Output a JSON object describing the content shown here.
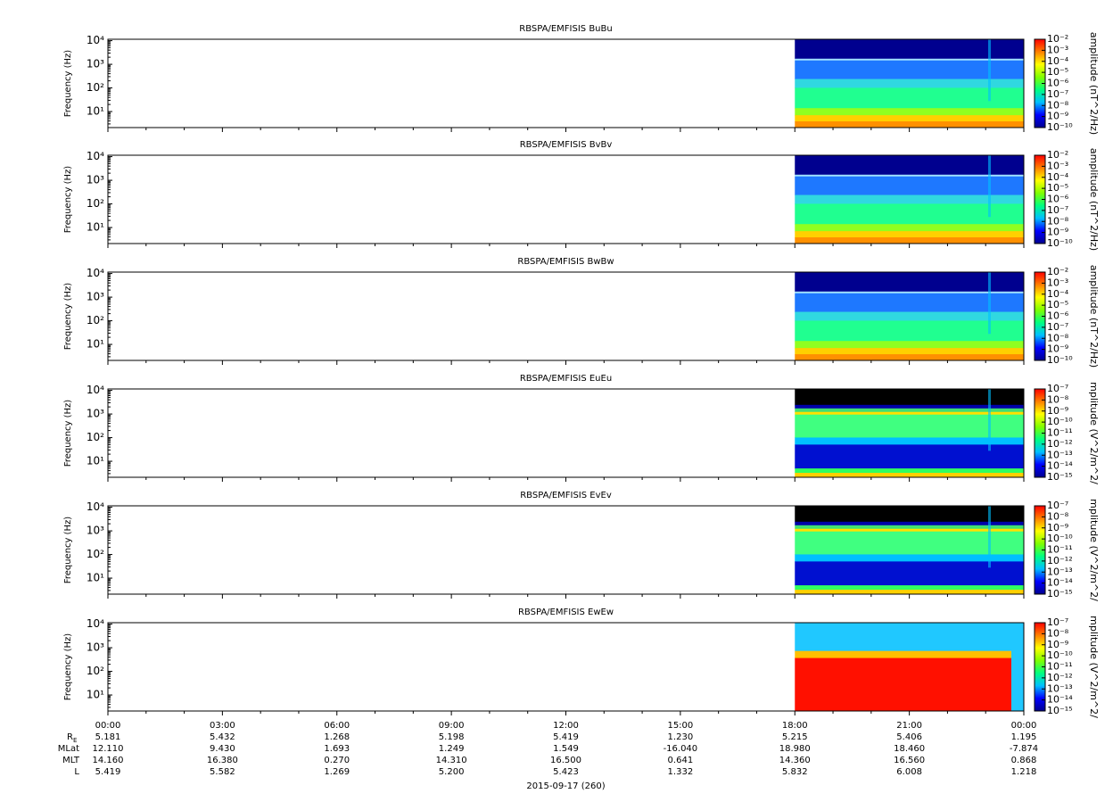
{
  "chart_data": [
    {
      "type": "spectrogram",
      "title": "RBSPA/EMFISIS  BuBu",
      "ylabel": "Frequency (Hz)",
      "ylog": true,
      "ylim": [
        2.1,
        11500
      ],
      "yticks": [
        {
          "value": 10,
          "label": "10¹"
        },
        {
          "value": 100,
          "label": "10²"
        },
        {
          "value": 1000,
          "label": "10³"
        },
        {
          "value": 10000,
          "label": "10⁴"
        }
      ],
      "colorbar": {
        "label": "amplitude (nT^2/Hz)",
        "log": true,
        "lim": [
          1e-10,
          0.01
        ],
        "ticks": [
          {
            "value": 0.01,
            "label": "10⁻²"
          },
          {
            "value": 0.001,
            "label": "10⁻³"
          },
          {
            "value": 0.0001,
            "label": "10⁻⁴"
          },
          {
            "value": 1e-05,
            "label": "10⁻⁵"
          },
          {
            "value": 1e-06,
            "label": "10⁻⁶"
          },
          {
            "value": 1e-07,
            "label": "10⁻⁷"
          },
          {
            "value": 1e-08,
            "label": "10⁻⁸"
          },
          {
            "value": 1e-09,
            "label": "10⁻⁹"
          },
          {
            "value": 1e-10,
            "label": "10⁻¹⁰"
          }
        ]
      }
    },
    {
      "type": "spectrogram",
      "title": "RBSPA/EMFISIS  BvBv",
      "ylabel": "Frequency (Hz)",
      "ylog": true,
      "ylim": [
        2.1,
        11500
      ],
      "yticks": [
        {
          "value": 10,
          "label": "10¹"
        },
        {
          "value": 100,
          "label": "10²"
        },
        {
          "value": 1000,
          "label": "10³"
        },
        {
          "value": 10000,
          "label": "10⁴"
        }
      ],
      "colorbar": {
        "label": "amplitude (nT^2/Hz)",
        "log": true,
        "lim": [
          1e-10,
          0.01
        ],
        "ticks": [
          {
            "value": 0.01,
            "label": "10⁻²"
          },
          {
            "value": 0.001,
            "label": "10⁻³"
          },
          {
            "value": 0.0001,
            "label": "10⁻⁴"
          },
          {
            "value": 1e-05,
            "label": "10⁻⁵"
          },
          {
            "value": 1e-06,
            "label": "10⁻⁶"
          },
          {
            "value": 1e-07,
            "label": "10⁻⁷"
          },
          {
            "value": 1e-08,
            "label": "10⁻⁸"
          },
          {
            "value": 1e-09,
            "label": "10⁻⁹"
          },
          {
            "value": 1e-10,
            "label": "10⁻¹⁰"
          }
        ]
      }
    },
    {
      "type": "spectrogram",
      "title": "RBSPA/EMFISIS  BwBw",
      "ylabel": "Frequency (Hz)",
      "ylog": true,
      "ylim": [
        2.1,
        11500
      ],
      "yticks": [
        {
          "value": 10,
          "label": "10¹"
        },
        {
          "value": 100,
          "label": "10²"
        },
        {
          "value": 1000,
          "label": "10³"
        },
        {
          "value": 10000,
          "label": "10⁴"
        }
      ],
      "colorbar": {
        "label": "amplitude (nT^2/Hz)",
        "log": true,
        "lim": [
          1e-10,
          0.01
        ],
        "ticks": [
          {
            "value": 0.01,
            "label": "10⁻²"
          },
          {
            "value": 0.001,
            "label": "10⁻³"
          },
          {
            "value": 0.0001,
            "label": "10⁻⁴"
          },
          {
            "value": 1e-05,
            "label": "10⁻⁵"
          },
          {
            "value": 1e-06,
            "label": "10⁻⁶"
          },
          {
            "value": 1e-07,
            "label": "10⁻⁷"
          },
          {
            "value": 1e-08,
            "label": "10⁻⁸"
          },
          {
            "value": 1e-09,
            "label": "10⁻⁹"
          },
          {
            "value": 1e-10,
            "label": "10⁻¹⁰"
          }
        ]
      }
    },
    {
      "type": "spectrogram",
      "title": "RBSPA/EMFISIS  EuEu",
      "ylabel": "Frequency (Hz)",
      "ylog": true,
      "ylim": [
        2.1,
        11500
      ],
      "yticks": [
        {
          "value": 10,
          "label": "10¹"
        },
        {
          "value": 100,
          "label": "10²"
        },
        {
          "value": 1000,
          "label": "10³"
        },
        {
          "value": 10000,
          "label": "10⁴"
        }
      ],
      "colorbar": {
        "label": "mplitude (V^2/m^2/",
        "log": true,
        "lim": [
          1e-15,
          1e-07
        ],
        "ticks": [
          {
            "value": 1e-07,
            "label": "10⁻⁷"
          },
          {
            "value": 1e-08,
            "label": "10⁻⁸"
          },
          {
            "value": 1e-09,
            "label": "10⁻⁹"
          },
          {
            "value": 1e-10,
            "label": "10⁻¹⁰"
          },
          {
            "value": 1e-11,
            "label": "10⁻¹¹"
          },
          {
            "value": 1e-12,
            "label": "10⁻¹²"
          },
          {
            "value": 1e-13,
            "label": "10⁻¹³"
          },
          {
            "value": 1e-14,
            "label": "10⁻¹⁴"
          },
          {
            "value": 1e-15,
            "label": "10⁻¹⁵"
          }
        ]
      }
    },
    {
      "type": "spectrogram",
      "title": "RBSPA/EMFISIS  EvEv",
      "ylabel": "Frequency (Hz)",
      "ylog": true,
      "ylim": [
        2.1,
        11500
      ],
      "yticks": [
        {
          "value": 10,
          "label": "10¹"
        },
        {
          "value": 100,
          "label": "10²"
        },
        {
          "value": 1000,
          "label": "10³"
        },
        {
          "value": 10000,
          "label": "10⁴"
        }
      ],
      "colorbar": {
        "label": "mplitude (V^2/m^2/",
        "log": true,
        "lim": [
          1e-15,
          1e-07
        ],
        "ticks": [
          {
            "value": 1e-07,
            "label": "10⁻⁷"
          },
          {
            "value": 1e-08,
            "label": "10⁻⁸"
          },
          {
            "value": 1e-09,
            "label": "10⁻⁹"
          },
          {
            "value": 1e-10,
            "label": "10⁻¹⁰"
          },
          {
            "value": 1e-11,
            "label": "10⁻¹¹"
          },
          {
            "value": 1e-12,
            "label": "10⁻¹²"
          },
          {
            "value": 1e-13,
            "label": "10⁻¹³"
          },
          {
            "value": 1e-14,
            "label": "10⁻¹⁴"
          },
          {
            "value": 1e-15,
            "label": "10⁻¹⁵"
          }
        ]
      }
    },
    {
      "type": "spectrogram",
      "title": "RBSPA/EMFISIS  EwEw",
      "ylabel": "Frequency (Hz)",
      "ylog": true,
      "ylim": [
        2.1,
        11500
      ],
      "yticks": [
        {
          "value": 10,
          "label": "10¹"
        },
        {
          "value": 100,
          "label": "10²"
        },
        {
          "value": 1000,
          "label": "10³"
        },
        {
          "value": 10000,
          "label": "10⁴"
        }
      ],
      "colorbar": {
        "label": "mplitude (V^2/m^2/",
        "log": true,
        "lim": [
          1e-15,
          1e-07
        ],
        "ticks": [
          {
            "value": 1e-07,
            "label": "10⁻⁷"
          },
          {
            "value": 1e-08,
            "label": "10⁻⁸"
          },
          {
            "value": 1e-09,
            "label": "10⁻⁹"
          },
          {
            "value": 1e-10,
            "label": "10⁻¹⁰"
          },
          {
            "value": 1e-11,
            "label": "10⁻¹¹"
          },
          {
            "value": 1e-12,
            "label": "10⁻¹²"
          },
          {
            "value": 1e-13,
            "label": "10⁻¹³"
          },
          {
            "value": 1e-14,
            "label": "10⁻¹⁴"
          },
          {
            "value": 1e-15,
            "label": "10⁻¹⁵"
          }
        ]
      }
    }
  ],
  "colormap": [
    "#00008f",
    "#0000ff",
    "#00bfff",
    "#00ff80",
    "#80ff00",
    "#ffff00",
    "#ff8000",
    "#ff0000"
  ],
  "x_axis": {
    "xlim": [
      0,
      24
    ],
    "xticks": [
      {
        "value": 0,
        "label": "00:00"
      },
      {
        "value": 3,
        "label": "03:00"
      },
      {
        "value": 6,
        "label": "06:00"
      },
      {
        "value": 9,
        "label": "09:00"
      },
      {
        "value": 12,
        "label": "12:00"
      },
      {
        "value": 15,
        "label": "15:00"
      },
      {
        "value": 18,
        "label": "18:00"
      },
      {
        "value": 21,
        "label": "21:00"
      },
      {
        "value": 24,
        "label": "00:00"
      }
    ],
    "date_label": "2015-09-17 (260)",
    "ephemeris": [
      {
        "label": "R",
        "sub": "E",
        "values": [
          "5.181",
          "5.432",
          "1.268",
          "5.198",
          "5.419",
          "1.230",
          "5.215",
          "5.406",
          "1.195"
        ]
      },
      {
        "label": "MLat",
        "values": [
          "12.110",
          "9.430",
          "1.693",
          "1.249",
          "1.549",
          "-16.040",
          "18.980",
          "18.460",
          "-7.874"
        ]
      },
      {
        "label": "MLT",
        "values": [
          "14.160",
          "16.380",
          "0.270",
          "14.310",
          "16.500",
          "0.641",
          "14.360",
          "16.560",
          "0.868"
        ]
      },
      {
        "label": "L",
        "values": [
          "5.419",
          "5.582",
          "1.269",
          "5.200",
          "5.423",
          "1.332",
          "5.832",
          "6.008",
          "1.218"
        ]
      }
    ]
  }
}
